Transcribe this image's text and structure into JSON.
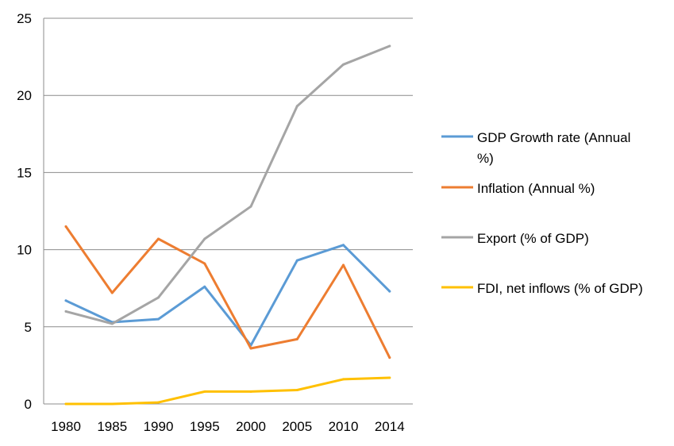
{
  "chart_data": {
    "type": "line",
    "categories": [
      "1980",
      "1985",
      "1990",
      "1995",
      "2000",
      "2005",
      "2010",
      "2014"
    ],
    "ylim": [
      0,
      25
    ],
    "yticks": [
      "0",
      "5",
      "10",
      "15",
      "20",
      "25"
    ],
    "grid": true,
    "legend_position": "right",
    "series": [
      {
        "name": "GDP Growth rate (Annual %)",
        "legend_lines": [
          "GDP Growth rate (Annual",
          "%)"
        ],
        "color": "#5B9BD5",
        "values": [
          6.7,
          5.3,
          5.5,
          7.6,
          3.8,
          9.3,
          10.3,
          7.3
        ]
      },
      {
        "name": "Inflation (Annual %)",
        "legend_lines": [
          "Inflation (Annual %)"
        ],
        "color": "#ED7D31",
        "values": [
          11.5,
          7.2,
          10.7,
          9.1,
          3.6,
          4.2,
          9.0,
          3.0
        ]
      },
      {
        "name": "Export (% of GDP)",
        "legend_lines": [
          "Export (% of GDP)"
        ],
        "color": "#A5A5A5",
        "values": [
          6.0,
          5.2,
          6.9,
          10.7,
          12.8,
          19.3,
          22.0,
          23.2
        ]
      },
      {
        "name": "FDI, net inflows (% of GDP)",
        "legend_lines": [
          "FDI, net inflows (% of GDP)"
        ],
        "color": "#FFC000",
        "values": [
          0.0,
          0.0,
          0.1,
          0.8,
          0.8,
          0.9,
          1.6,
          1.7
        ]
      }
    ]
  }
}
